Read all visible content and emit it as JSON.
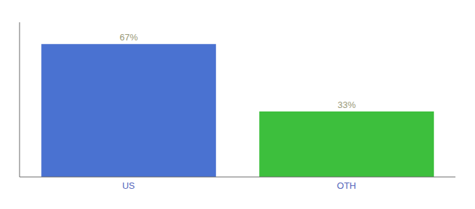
{
  "chart_data": {
    "type": "bar",
    "categories": [
      "US",
      "OTH"
    ],
    "values": [
      67,
      33
    ],
    "value_labels": [
      "67%",
      "33%"
    ],
    "colors": [
      "#4a72d1",
      "#3dbf3d"
    ],
    "ylim": [
      0,
      78
    ],
    "data_labels": true,
    "tick_labels": "x",
    "grid": false
  }
}
